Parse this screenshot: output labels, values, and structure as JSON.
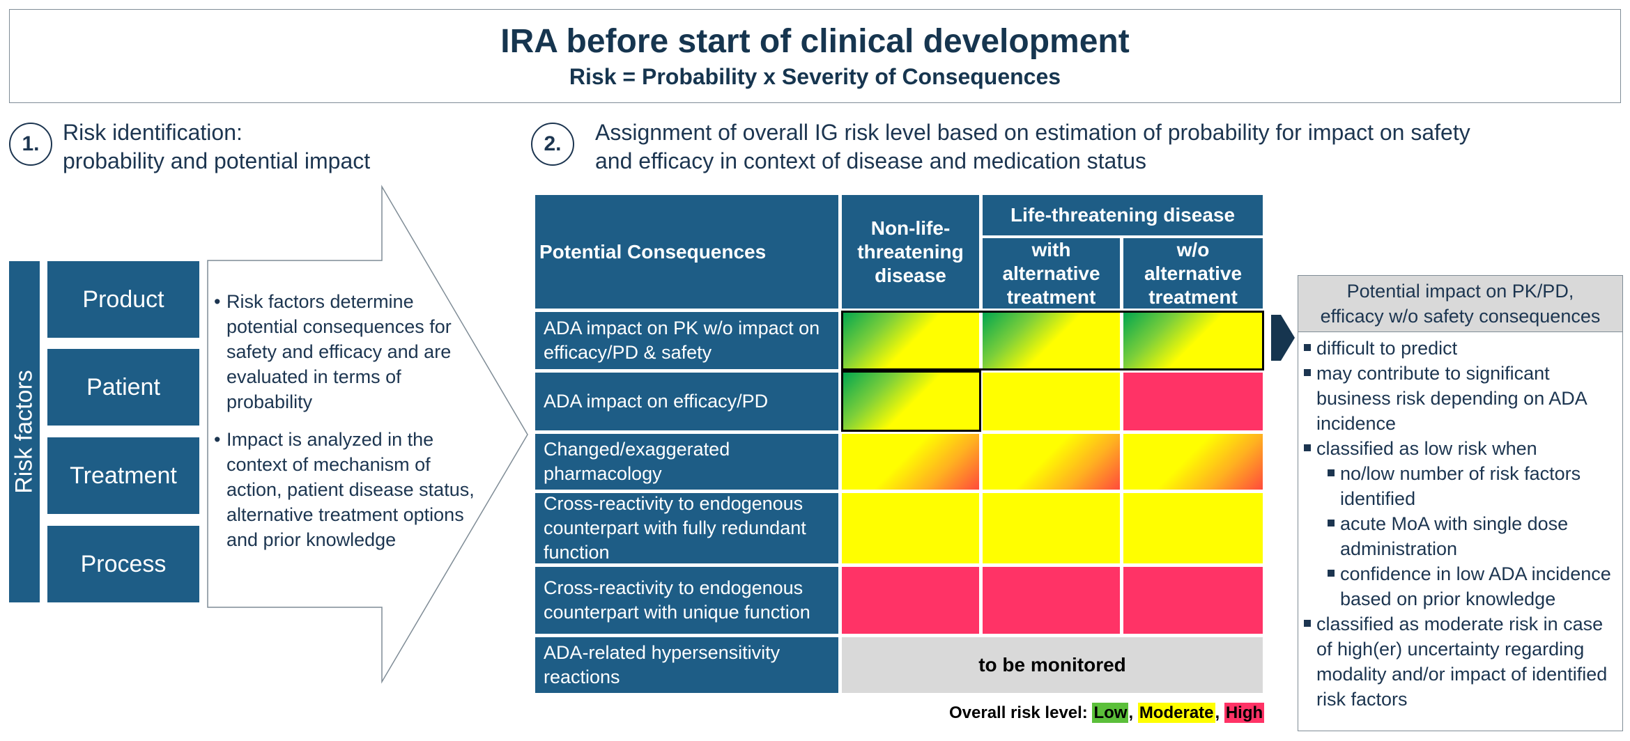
{
  "header": {
    "title": "IRA before start of clinical development",
    "subtitle": "Risk  = Probability x Severity of Consequences"
  },
  "section1": {
    "number": "1.",
    "title_line1": "Risk identification:",
    "title_line2": "probability and potential impact"
  },
  "section2": {
    "number": "2.",
    "title_line1": "Assignment of overall IG risk level based on estimation of probability for impact on safety",
    "title_line2": "and efficacy in context of disease and medication status"
  },
  "risk_factors": {
    "label": "Risk factors",
    "items": [
      "Product",
      "Patient",
      "Treatment",
      "Process"
    ]
  },
  "arrow_text": {
    "bullet1": "Risk factors determine potential consequences for safety and efficacy and are evaluated in terms of probability",
    "bullet2": "Impact is analyzed in the context of mechanism of action, patient disease status, alternative treatment options and prior knowledge"
  },
  "matrix": {
    "corner_label": "Potential Consequences",
    "col_non_life": "Non-life-threatening disease",
    "col_life_group": "Life-threatening disease",
    "col_with_alt": "with alternative treatment",
    "col_wo_alt": "w/o alternative treatment",
    "rows": [
      {
        "label": "ADA impact on PK w/o impact on efficacy/PD & safety",
        "levels": [
          "low-moderate",
          "low-moderate",
          "low-moderate"
        ]
      },
      {
        "label": "ADA impact on efficacy/PD",
        "levels": [
          "low-moderate",
          "moderate",
          "high"
        ]
      },
      {
        "label": "Changed/exaggerated pharmacology",
        "levels": [
          "moderate-high",
          "moderate-high",
          "moderate-high"
        ]
      },
      {
        "label": "Cross-reactivity to endogenous counterpart with fully redundant function",
        "levels": [
          "moderate",
          "moderate",
          "moderate"
        ]
      },
      {
        "label": "Cross-reactivity to endogenous counterpart with unique function",
        "levels": [
          "high",
          "high",
          "high"
        ]
      },
      {
        "label": "ADA-related hypersensitivity reactions",
        "levels": [
          "monitored"
        ]
      }
    ],
    "monitored_text": "to be monitored"
  },
  "legend": {
    "prefix": "Overall risk level:",
    "low": "Low",
    "moderate": "Moderate",
    "high": "High",
    "sep1": ",",
    "sep2": ",",
    "colors": {
      "low": "#5bbf3a",
      "moderate": "#fffe00",
      "high": "#ff3366"
    }
  },
  "impact_panel": {
    "title_line1": "Potential impact on PK/PD,",
    "title_line2": "efficacy w/o safety consequences",
    "items": [
      "difficult to predict",
      "may contribute to significant business risk depending on ADA incidence",
      "classified as low risk when"
    ],
    "sub_items": [
      "no/low number of risk factors identified",
      "acute MoA with single dose administration",
      "confidence in low ADA incidence based on prior knowledge"
    ],
    "last_item": "classified as moderate risk in case of high(er) uncertainty regarding modality and/or impact of identified risk factors"
  },
  "colors": {
    "dark_blue": "#1e5d86",
    "text_navy": "#1c3550",
    "yellow": "#fffe00",
    "red": "#ff3366",
    "green": "#00a550",
    "grey": "#d9d9d9"
  }
}
